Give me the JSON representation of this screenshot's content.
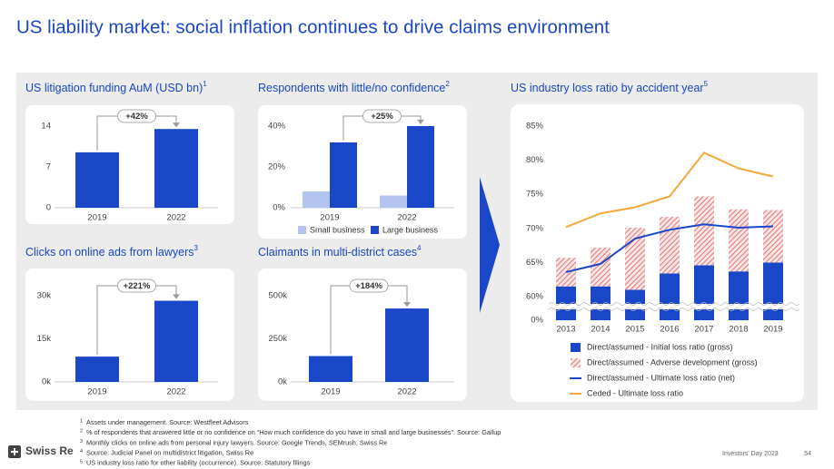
{
  "title": "US liability market: social inflation continues to drive claims environment",
  "chart_data": [
    {
      "type": "bar",
      "title": "US litigation funding AuM (USD bn)",
      "note": "1",
      "categories": [
        "2019",
        "2022"
      ],
      "values": [
        9.5,
        13.5
      ],
      "color": "#1a47c7",
      "ylim": [
        0,
        14
      ],
      "yticks": [
        0,
        7,
        14
      ],
      "annotation": "+42%"
    },
    {
      "type": "grouped_bar",
      "title": "Respondents with little/no confidence",
      "note": "2",
      "categories": [
        "2019",
        "2022"
      ],
      "series": [
        {
          "name": "Small business",
          "color": "#b4c4f0",
          "values": [
            8,
            6
          ]
        },
        {
          "name": "Large business",
          "color": "#1a47c7",
          "values": [
            32,
            40
          ]
        }
      ],
      "ylim": [
        0,
        40
      ],
      "yticks": [
        {
          "value": 0,
          "label": "0%"
        },
        {
          "value": 20,
          "label": "20%"
        },
        {
          "value": 40,
          "label": "40%"
        }
      ],
      "annotation": "+25%"
    },
    {
      "type": "bar",
      "title": "Clicks on online ads from lawyers",
      "note": "3",
      "categories": [
        "2019",
        "2022"
      ],
      "values": [
        8800,
        28250
      ],
      "color": "#1a47c7",
      "ylim": [
        0,
        30000
      ],
      "yticks": [
        {
          "value": 0,
          "label": "0k"
        },
        {
          "value": 15000,
          "label": "15k"
        },
        {
          "value": 30000,
          "label": "30k"
        }
      ],
      "annotation": "+221%"
    },
    {
      "type": "bar",
      "title": "Claimants in multi-district cases",
      "note": "4",
      "categories": [
        "2019",
        "2022"
      ],
      "values": [
        150000,
        426000
      ],
      "color": "#1a47c7",
      "ylim": [
        0,
        500000
      ],
      "yticks": [
        {
          "value": 0,
          "label": "0k"
        },
        {
          "value": 250000,
          "label": "250k"
        },
        {
          "value": 500000,
          "label": "500k"
        }
      ],
      "annotation": "+184%"
    },
    {
      "type": "combo",
      "title": "US industry loss ratio by accident year",
      "note": "5",
      "categories": [
        "2013",
        "2014",
        "2015",
        "2016",
        "2017",
        "2018",
        "2019"
      ],
      "axis_break": true,
      "ylim": [
        60,
        85
      ],
      "yticks": [
        {
          "value": 0,
          "label": "0%"
        },
        {
          "value": 60,
          "label": "60%"
        },
        {
          "value": 65,
          "label": "65%"
        },
        {
          "value": 70,
          "label": "70%"
        },
        {
          "value": 75,
          "label": "75%"
        },
        {
          "value": 80,
          "label": "80%"
        },
        {
          "value": 85,
          "label": "85%"
        }
      ],
      "series": [
        {
          "name": "Direct/assumed - Initial loss ratio (gross)",
          "type": "bar",
          "color": "#1a47c7",
          "values": [
            61.5,
            61.5,
            61.0,
            63.4,
            64.6,
            63.7,
            65.0
          ]
        },
        {
          "name": "Direct/assumed - Adverse development (gross)",
          "type": "bar",
          "pattern": "hatch",
          "color": "#e27c7c",
          "values": [
            4.2,
            5.7,
            9.1,
            8.3,
            10.1,
            9.1,
            7.7
          ]
        },
        {
          "name": "Direct/assumed - Ultimate loss ratio (net)",
          "type": "line",
          "color": "#1a47c7",
          "values": [
            63.6,
            64.8,
            68.5,
            69.8,
            70.6,
            70.1,
            70.3
          ]
        },
        {
          "name": "Ceded - Ultimate loss ratio",
          "type": "line",
          "color": "#f4a93a",
          "values": [
            70.2,
            72.2,
            73.1,
            74.7,
            81.1,
            78.8,
            77.6
          ]
        }
      ]
    }
  ],
  "footnotes": [
    {
      "num": "1",
      "text": "Assets under management. Source: Westfleet Advisors"
    },
    {
      "num": "2",
      "text": "% of respondents that answered little or no confidence on “How much confidence do you have in small and large businesses”. Source: Gallup"
    },
    {
      "num": "3",
      "text": "Monthly clicks on online ads from personal injury lawyers. Source: Google Trends, SEMrush, Swiss Re"
    },
    {
      "num": "4",
      "text": "Source: Judicial Panel on multidistrict litigation, Swiss Re"
    },
    {
      "num": "5",
      "text": "US industry loss ratio for other liability (occurrence). Source: Statutory filings"
    }
  ],
  "footer": {
    "logo": "Swiss Re",
    "event": "Investors' Day 2023",
    "page": "54"
  }
}
